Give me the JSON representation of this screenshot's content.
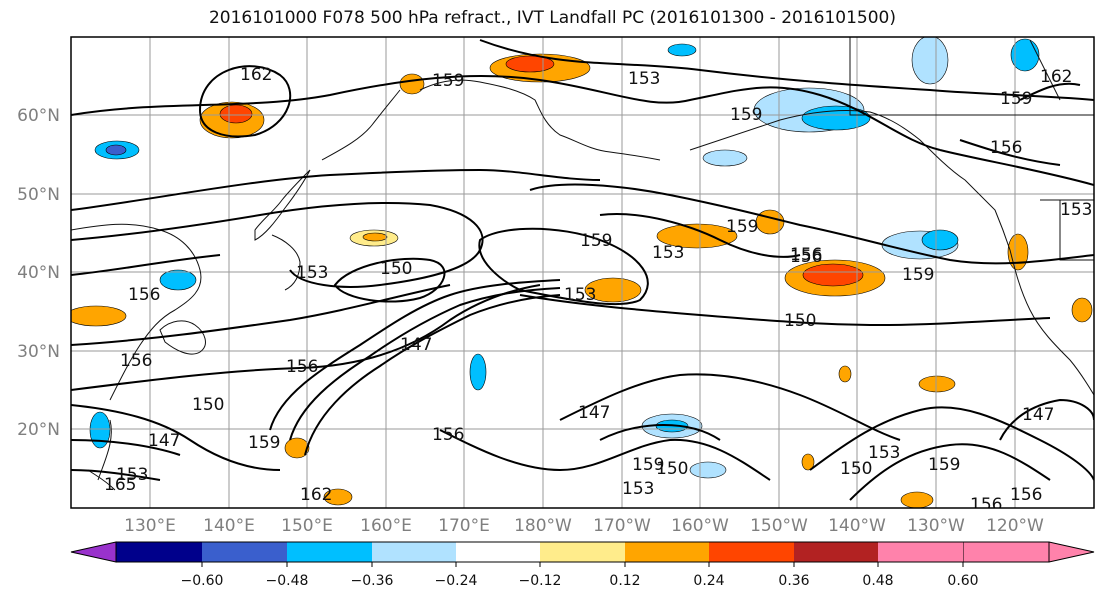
{
  "title": "2016101000 F078 500 hPa refract., IVT Landfall PC (2016101300 - 2016101500)",
  "lat_labels": [
    "60°N",
    "50°N",
    "40°N",
    "30°N",
    "20°N"
  ],
  "lon_labels": [
    "130°E",
    "140°E",
    "150°E",
    "160°E",
    "170°E",
    "180°W",
    "170°W",
    "160°W",
    "150°W",
    "140°W",
    "130°W",
    "120°W"
  ],
  "colorbar": {
    "colors": [
      "#9932cc",
      "#00008b",
      "#3a5fcd",
      "#00bfff",
      "#b0e2ff",
      "#ffffff",
      "#ffec8b",
      "#ffa500",
      "#ff4500",
      "#b22222",
      "#ff82ab"
    ],
    "tick_labels": [
      "−0.60",
      "−0.48",
      "−0.36",
      "−0.24",
      "−0.12",
      "0.12",
      "0.24",
      "0.36",
      "0.48",
      "0.60"
    ]
  },
  "contour_labels": [
    "162",
    "159",
    "153",
    "159",
    "156",
    "153",
    "150",
    "156",
    "159",
    "153",
    "159",
    "156",
    "159",
    "150",
    "147",
    "153",
    "150",
    "153",
    "156",
    "156",
    "147",
    "150",
    "153",
    "156",
    "147",
    "165",
    "159",
    "156",
    "162",
    "156",
    "150",
    "153",
    "159",
    "156",
    "159",
    "147",
    "162",
    "159",
    "153"
  ]
}
